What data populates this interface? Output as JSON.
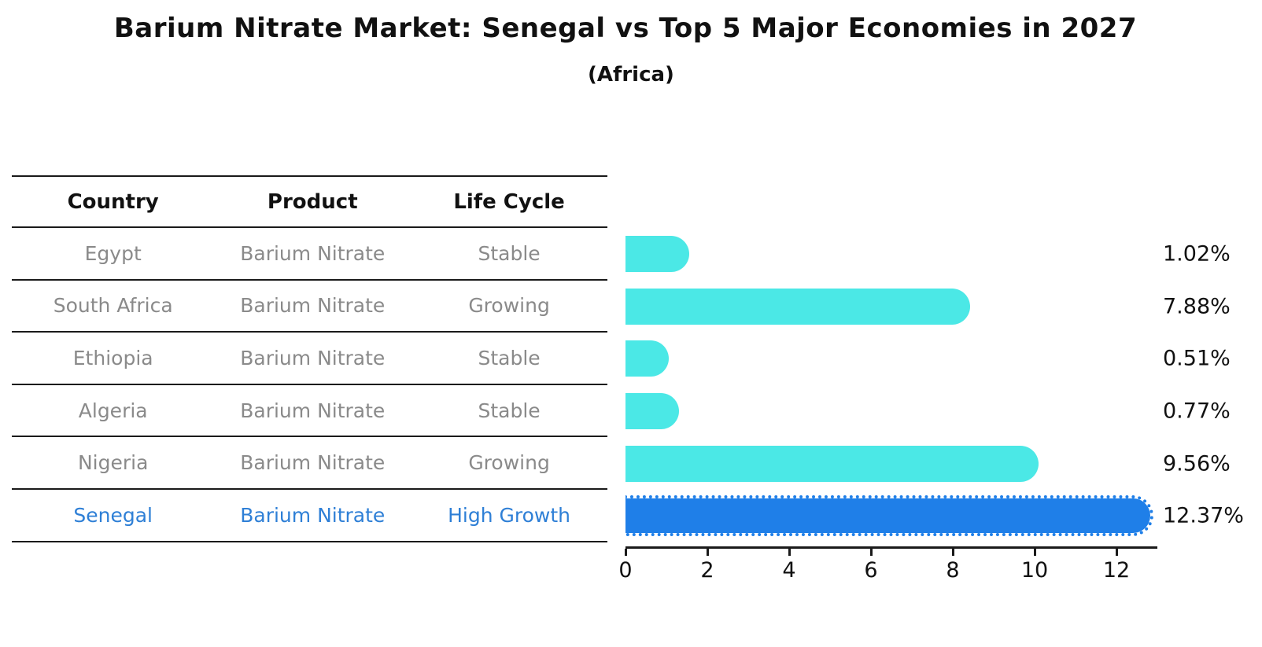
{
  "title": "Barium Nitrate Market: Senegal vs Top 5 Major Economies in 2027",
  "subtitle": "(Africa)",
  "table": {
    "columns": [
      "Country",
      "Product",
      "Life Cycle"
    ],
    "rows": [
      {
        "country": "Egypt",
        "product": "Barium Nitrate",
        "life_cycle": "Stable"
      },
      {
        "country": "South Africa",
        "product": "Barium Nitrate",
        "life_cycle": "Growing"
      },
      {
        "country": "Ethiopia",
        "product": "Barium Nitrate",
        "life_cycle": "Stable"
      },
      {
        "country": "Algeria",
        "product": "Barium Nitrate",
        "life_cycle": "Stable"
      },
      {
        "country": "Nigeria",
        "product": "Barium Nitrate",
        "life_cycle": "Growing"
      },
      {
        "country": "Senegal",
        "product": "Barium Nitrate",
        "life_cycle": "High Growth"
      }
    ],
    "highlight_row": "Senegal"
  },
  "chart_data": {
    "type": "bar",
    "orientation": "horizontal",
    "title": "Barium Nitrate Market: Senegal vs Top 5 Major Economies in 2027",
    "subtitle": "(Africa)",
    "categories": [
      "Egypt",
      "South Africa",
      "Ethiopia",
      "Algeria",
      "Nigeria",
      "Senegal"
    ],
    "values": [
      1.02,
      7.88,
      0.51,
      0.77,
      9.56,
      12.37
    ],
    "value_labels": [
      "1.02%",
      "7.88%",
      "0.51%",
      "0.77%",
      "9.56%",
      "12.37%"
    ],
    "unit": "%",
    "xlim": [
      0,
      13
    ],
    "xticks": [
      0,
      2,
      4,
      6,
      8,
      10,
      12
    ],
    "highlight_index": 5,
    "grid": false,
    "legend": false,
    "bar_color": "#4BE8E6",
    "highlight_bar_color": "#1F7FE8",
    "row_text_color": "#8a8a8a",
    "highlight_text_color": "#2E7FD6",
    "value_label_color": "#111111"
  }
}
